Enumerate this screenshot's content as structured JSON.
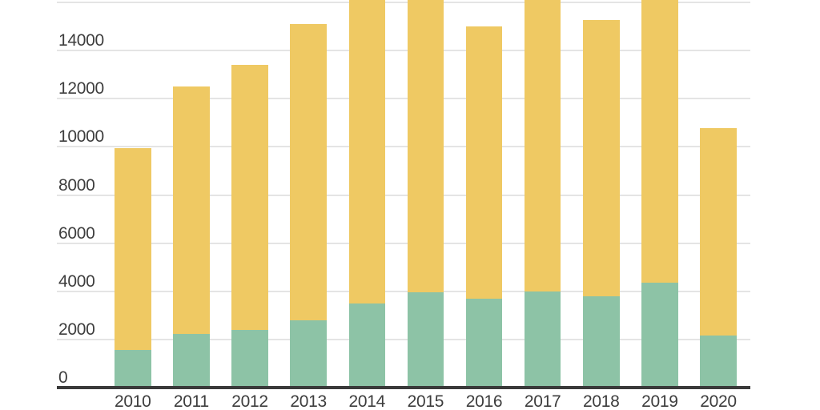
{
  "chart_data": {
    "type": "bar",
    "stacked": true,
    "title": "",
    "xlabel": "",
    "ylabel": "",
    "legend": "none",
    "grid": true,
    "categories": [
      "2010",
      "2011",
      "2012",
      "2013",
      "2014",
      "2015",
      "2016",
      "2017",
      "2018",
      "2019",
      "2020"
    ],
    "series": [
      {
        "name": "bottom-green-segment",
        "color": "#8DC3A6",
        "values": [
          1550,
          2220,
          2400,
          2800,
          3480,
          3950,
          3680,
          4000,
          3800,
          4370,
          2160
        ]
      },
      {
        "name": "top-yellow-segment",
        "color": "#EFC963",
        "values": [
          8400,
          10280,
          11000,
          12300,
          null,
          null,
          11320,
          null,
          11470,
          null,
          8620
        ]
      }
    ],
    "stacked_totals": [
      9950,
      12500,
      13400,
      15100,
      null,
      null,
      15000,
      null,
      15270,
      null,
      10780
    ],
    "bars_clipped_at_top": [
      false,
      false,
      false,
      false,
      true,
      true,
      false,
      true,
      false,
      true,
      false
    ],
    "clipping_note": "Bars for 2014, 2015, 2017 and 2019 extend beyond the top edge of the visible area (above ~16100)",
    "y_axis": {
      "tick_labels": [
        "0",
        "2000",
        "4000",
        "6000",
        "8000",
        "10000",
        "12000",
        "14000"
      ],
      "tick_values": [
        0,
        2000,
        4000,
        6000,
        8000,
        10000,
        12000,
        14000
      ],
      "unlabeled_gridline_value": 16000,
      "visible_max": 16106
    }
  },
  "style": {
    "background": "#FFFFFF",
    "bar_green": "#8DC3A6",
    "bar_yellow": "#EFC963",
    "gridline_color": "#E4E4E4",
    "axis_line_color": "#3A3A3A",
    "label_color": "#3D3D3D"
  }
}
